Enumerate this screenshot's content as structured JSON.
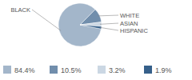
{
  "chart_data": {
    "type": "pie",
    "categories": [
      "BLACK",
      "WHITE",
      "ASIAN",
      "HISPANIC"
    ],
    "values": [
      84.4,
      10.5,
      3.2,
      1.9
    ],
    "value_labels": [
      "84.4%",
      "10.5%",
      "3.2%",
      "1.9%"
    ],
    "colors": [
      "#a3b6ca",
      "#718eac",
      "#cbd7e3",
      "#36608a"
    ]
  }
}
